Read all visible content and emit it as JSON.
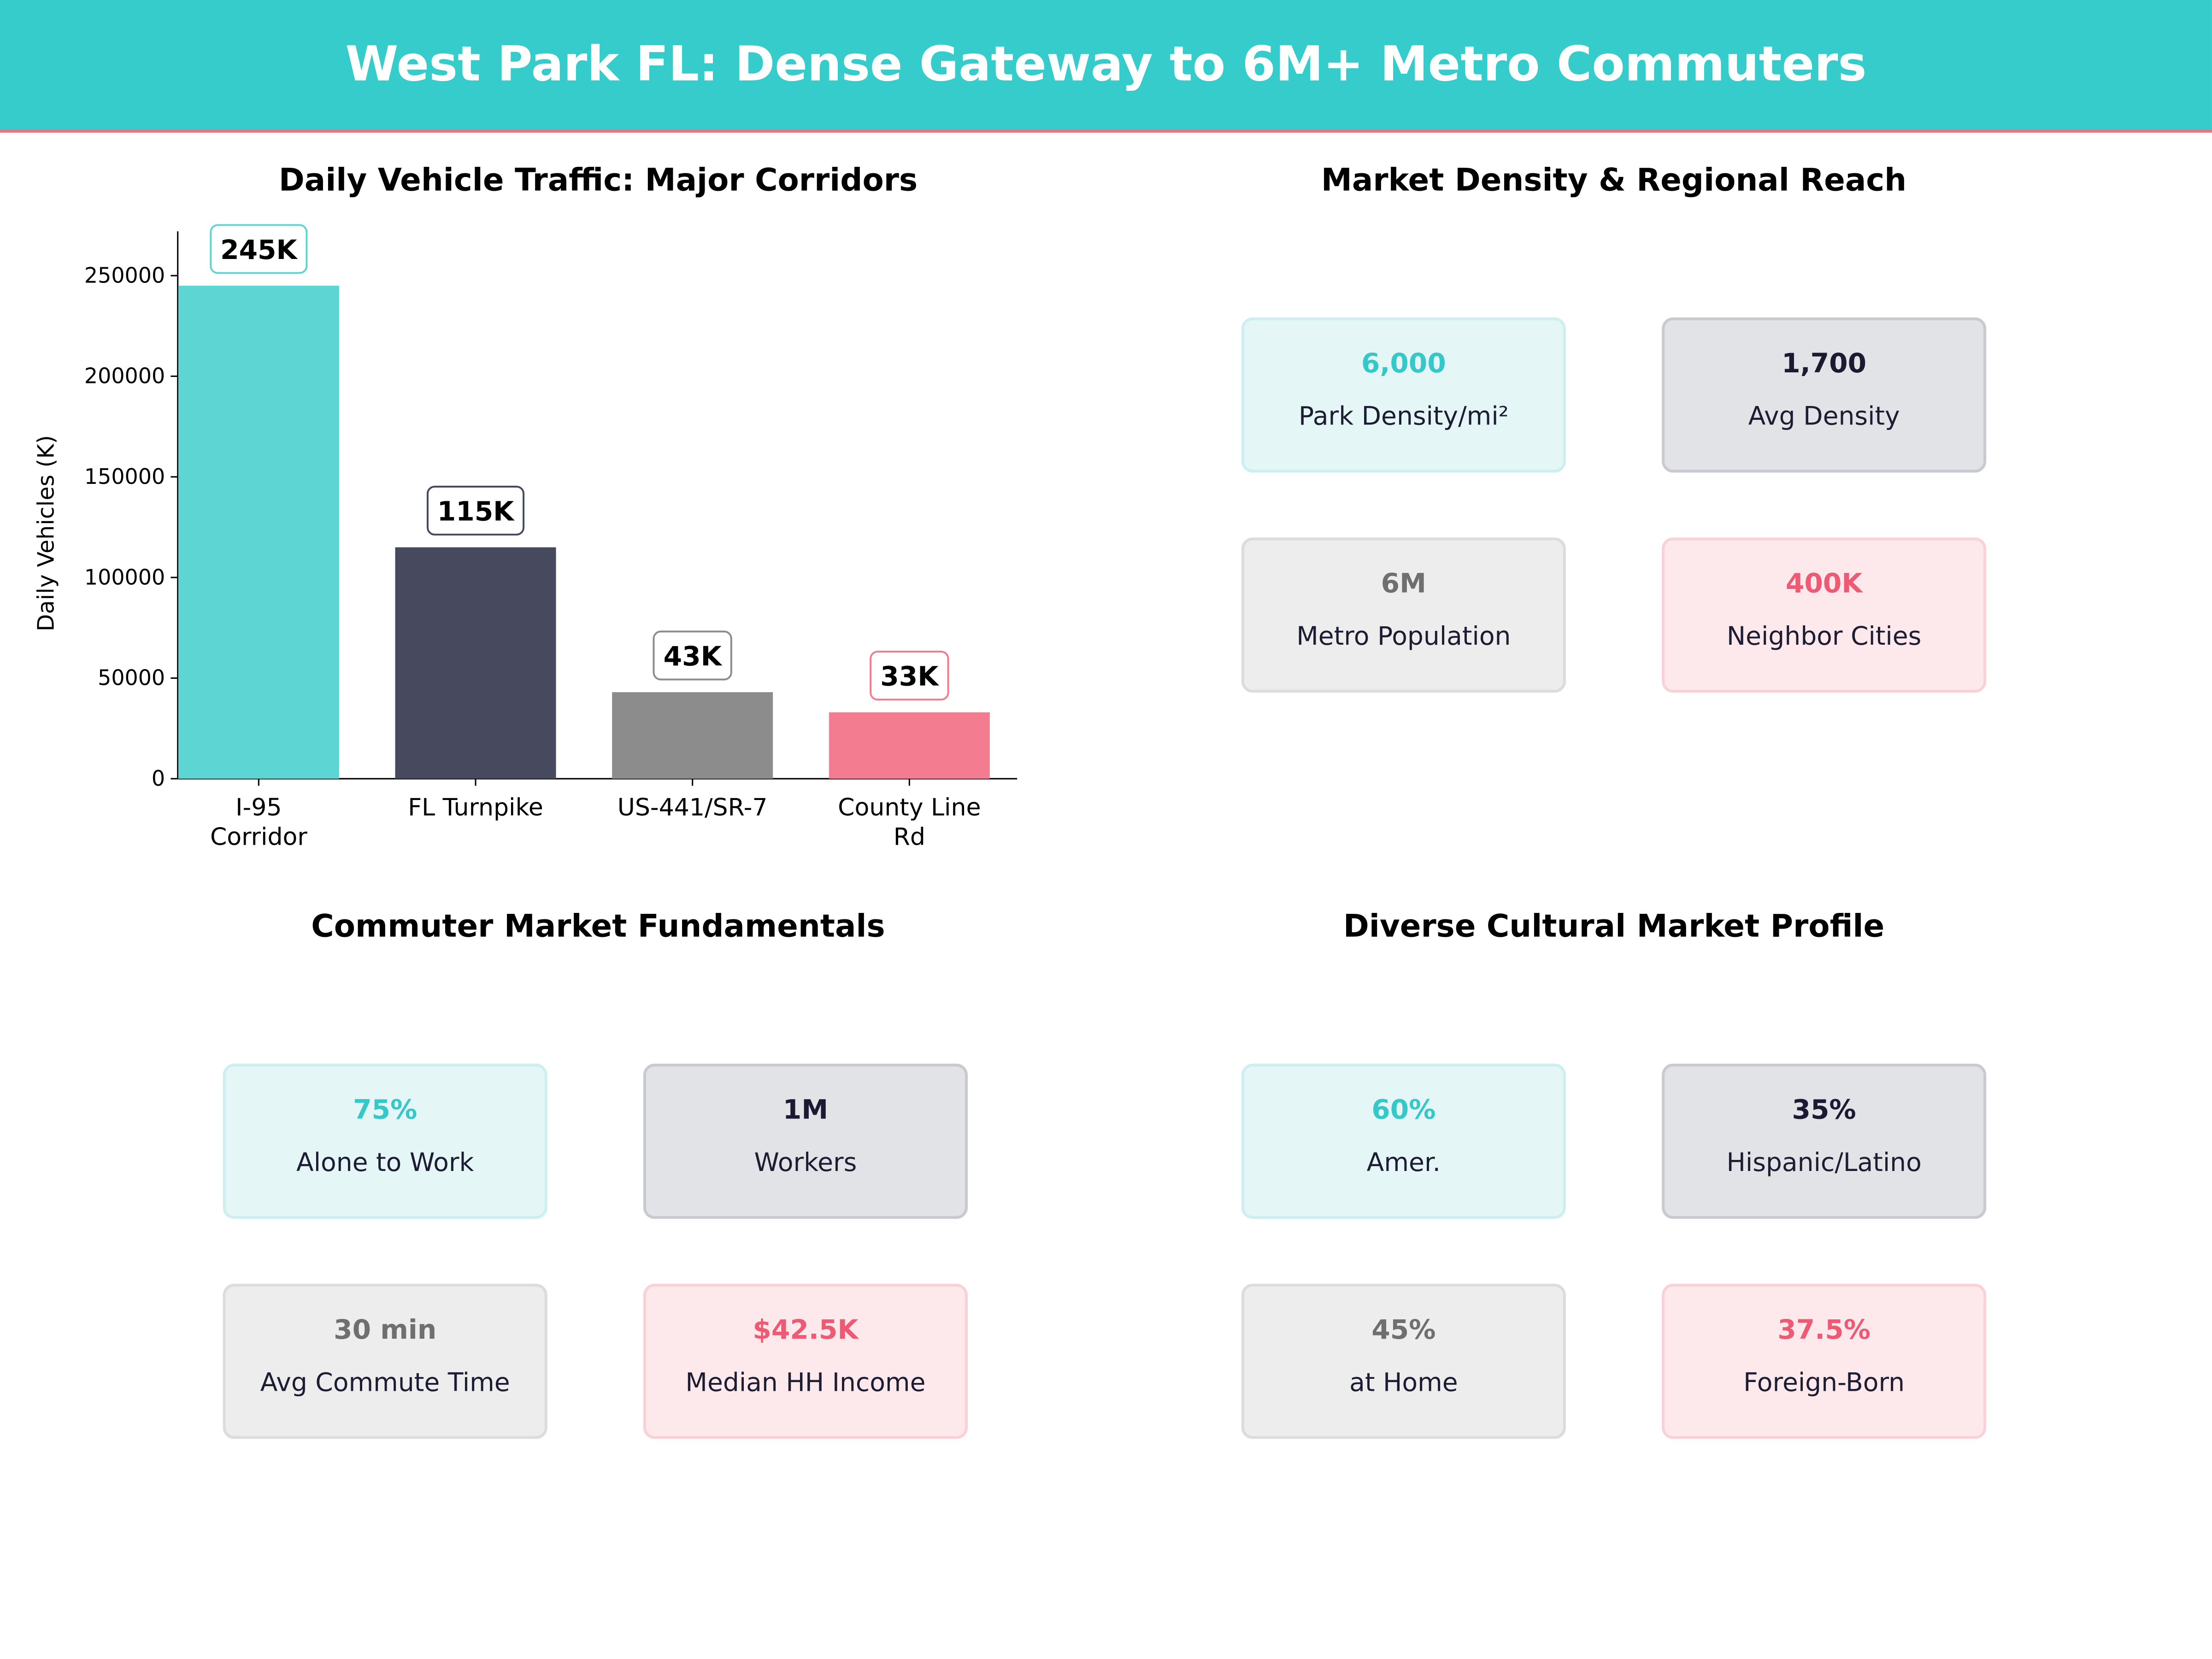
{
  "header": {
    "title": "West Park FL: Dense Gateway to 6M+ Metro Commuters"
  },
  "colors": {
    "header": "#36CCCC",
    "accent_line": "#F07080"
  },
  "chart_data": {
    "type": "bar",
    "title": "Daily Vehicle Traffic: Major Corridors",
    "ylabel": "Daily Vehicles (K)",
    "xlabel": "",
    "categories": [
      "I-95\nCorridor",
      "FL Turnpike",
      "US-441/SR-7",
      "County Line\nRd"
    ],
    "values": [
      245000,
      115000,
      43000,
      33000
    ],
    "data_labels": [
      "245K",
      "115K",
      "43K",
      "33K"
    ],
    "colors": [
      "#5DD6D3",
      "#474A5F",
      "#8C8C8C",
      "#F47C90"
    ],
    "ylim": [
      0,
      272000
    ],
    "yticks": [
      0,
      50000,
      100000,
      150000,
      200000,
      250000
    ],
    "grid": false
  },
  "panels": [
    {
      "title": "Market Density & Regional Reach",
      "cards": [
        {
          "value": "6,000",
          "label": "Park Density/mi²"
        },
        {
          "value": "1,700",
          "label": "Avg Density"
        },
        {
          "value": "6M",
          "label": "Metro Population"
        },
        {
          "value": "400K",
          "label": "Neighbor Cities"
        }
      ]
    },
    {
      "title": "Commuter Market Fundamentals",
      "cards": [
        {
          "value": "75%",
          "label": "Alone to Work"
        },
        {
          "value": "1M",
          "label": "Workers"
        },
        {
          "value": "30 min",
          "label": "Avg Commute Time"
        },
        {
          "value": "$42.5K",
          "label": "Median HH Income"
        }
      ]
    },
    {
      "title": "Diverse Cultural Market Profile",
      "cards": [
        {
          "value": "60%",
          "label": "Amer."
        },
        {
          "value": "35%",
          "label": "Hispanic/Latino"
        },
        {
          "value": "45%",
          "label": "at Home"
        },
        {
          "value": "37.5%",
          "label": "Foreign-Born"
        }
      ]
    }
  ]
}
